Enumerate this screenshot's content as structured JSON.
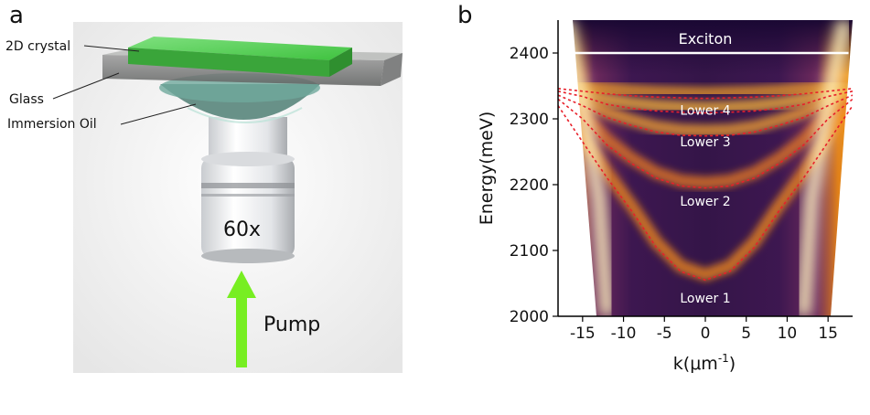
{
  "figure": {
    "panel_a_label": "a",
    "panel_b_label": "b"
  },
  "schematic": {
    "crystal_label": "2D crystal",
    "glass_label": "Glass",
    "oil_label": "Immersion Oil",
    "objective_label": "60x",
    "pump_label": "Pump",
    "crystal_color": "#4fd14f",
    "pump_color": "#77ee22"
  },
  "chart_data": {
    "type": "heatmap",
    "title": "",
    "xlabel": "k(μm",
    "xlabel_sup": "-1",
    "xlabel_close": ")",
    "ylabel": "Energy(meV)",
    "xlim": [
      -18,
      18
    ],
    "ylim": [
      2000,
      2450
    ],
    "x_ticks": [
      -15,
      -10,
      -5,
      0,
      5,
      10,
      15
    ],
    "y_ticks": [
      2000,
      2100,
      2200,
      2300,
      2400
    ],
    "colormap": "inferno",
    "annotations": [
      {
        "text": "Exciton",
        "k": 0,
        "energy": 2414
      },
      {
        "text": "Lower 4",
        "k": 0,
        "energy": 2306
      },
      {
        "text": "Lower 3",
        "k": 0,
        "energy": 2258
      },
      {
        "text": "Lower 2",
        "k": 0,
        "energy": 2168
      },
      {
        "text": "Lower 1",
        "k": 0,
        "energy": 2021
      }
    ],
    "exciton_line": {
      "energy": 2400,
      "k_range": [
        -17.5,
        17.5
      ],
      "color": "#ffffff"
    },
    "polariton_fits": [
      {
        "name": "Lower 1",
        "k": [
          -18,
          -15,
          -12,
          -9,
          -6,
          -3,
          0,
          3,
          6,
          9,
          12,
          15,
          18
        ],
        "energy": [
          2320,
          2265,
          2210,
          2160,
          2105,
          2068,
          2055,
          2068,
          2105,
          2160,
          2210,
          2265,
          2320
        ]
      },
      {
        "name": "Lower 2",
        "k": [
          -18,
          -15,
          -12,
          -9,
          -6,
          -3,
          0,
          3,
          6,
          9,
          12,
          15,
          18
        ],
        "energy": [
          2330,
          2300,
          2260,
          2232,
          2210,
          2198,
          2195,
          2198,
          2210,
          2232,
          2260,
          2300,
          2330
        ]
      },
      {
        "name": "Lower 3",
        "k": [
          -18,
          -15,
          -12,
          -9,
          -6,
          -3,
          0,
          3,
          6,
          9,
          12,
          15,
          18
        ],
        "energy": [
          2336,
          2320,
          2302,
          2290,
          2280,
          2275,
          2274,
          2275,
          2280,
          2290,
          2302,
          2320,
          2336
        ]
      },
      {
        "name": "Lower 4",
        "k": [
          -18,
          -15,
          -12,
          -9,
          -6,
          -3,
          0,
          3,
          6,
          9,
          12,
          15,
          18
        ],
        "energy": [
          2342,
          2334,
          2322,
          2316,
          2312,
          2310,
          2309,
          2310,
          2312,
          2316,
          2322,
          2334,
          2342
        ]
      },
      {
        "name": "Upper",
        "k": [
          -18,
          -15,
          -12,
          -9,
          -6,
          -3,
          0,
          3,
          6,
          9,
          12,
          15,
          18
        ],
        "energy": [
          2346,
          2342,
          2338,
          2335,
          2333,
          2332,
          2331,
          2332,
          2333,
          2335,
          2338,
          2342,
          2346
        ]
      }
    ],
    "fit_color": "#e8202a",
    "bright_branches": [
      {
        "name": "left",
        "k": [
          -17,
          -15,
          -13,
          -12
        ],
        "energy": [
          2450,
          2320,
          2180,
          2000
        ]
      },
      {
        "name": "right",
        "k": [
          17,
          15,
          13,
          12
        ],
        "energy": [
          2450,
          2320,
          2180,
          2000
        ]
      }
    ]
  }
}
